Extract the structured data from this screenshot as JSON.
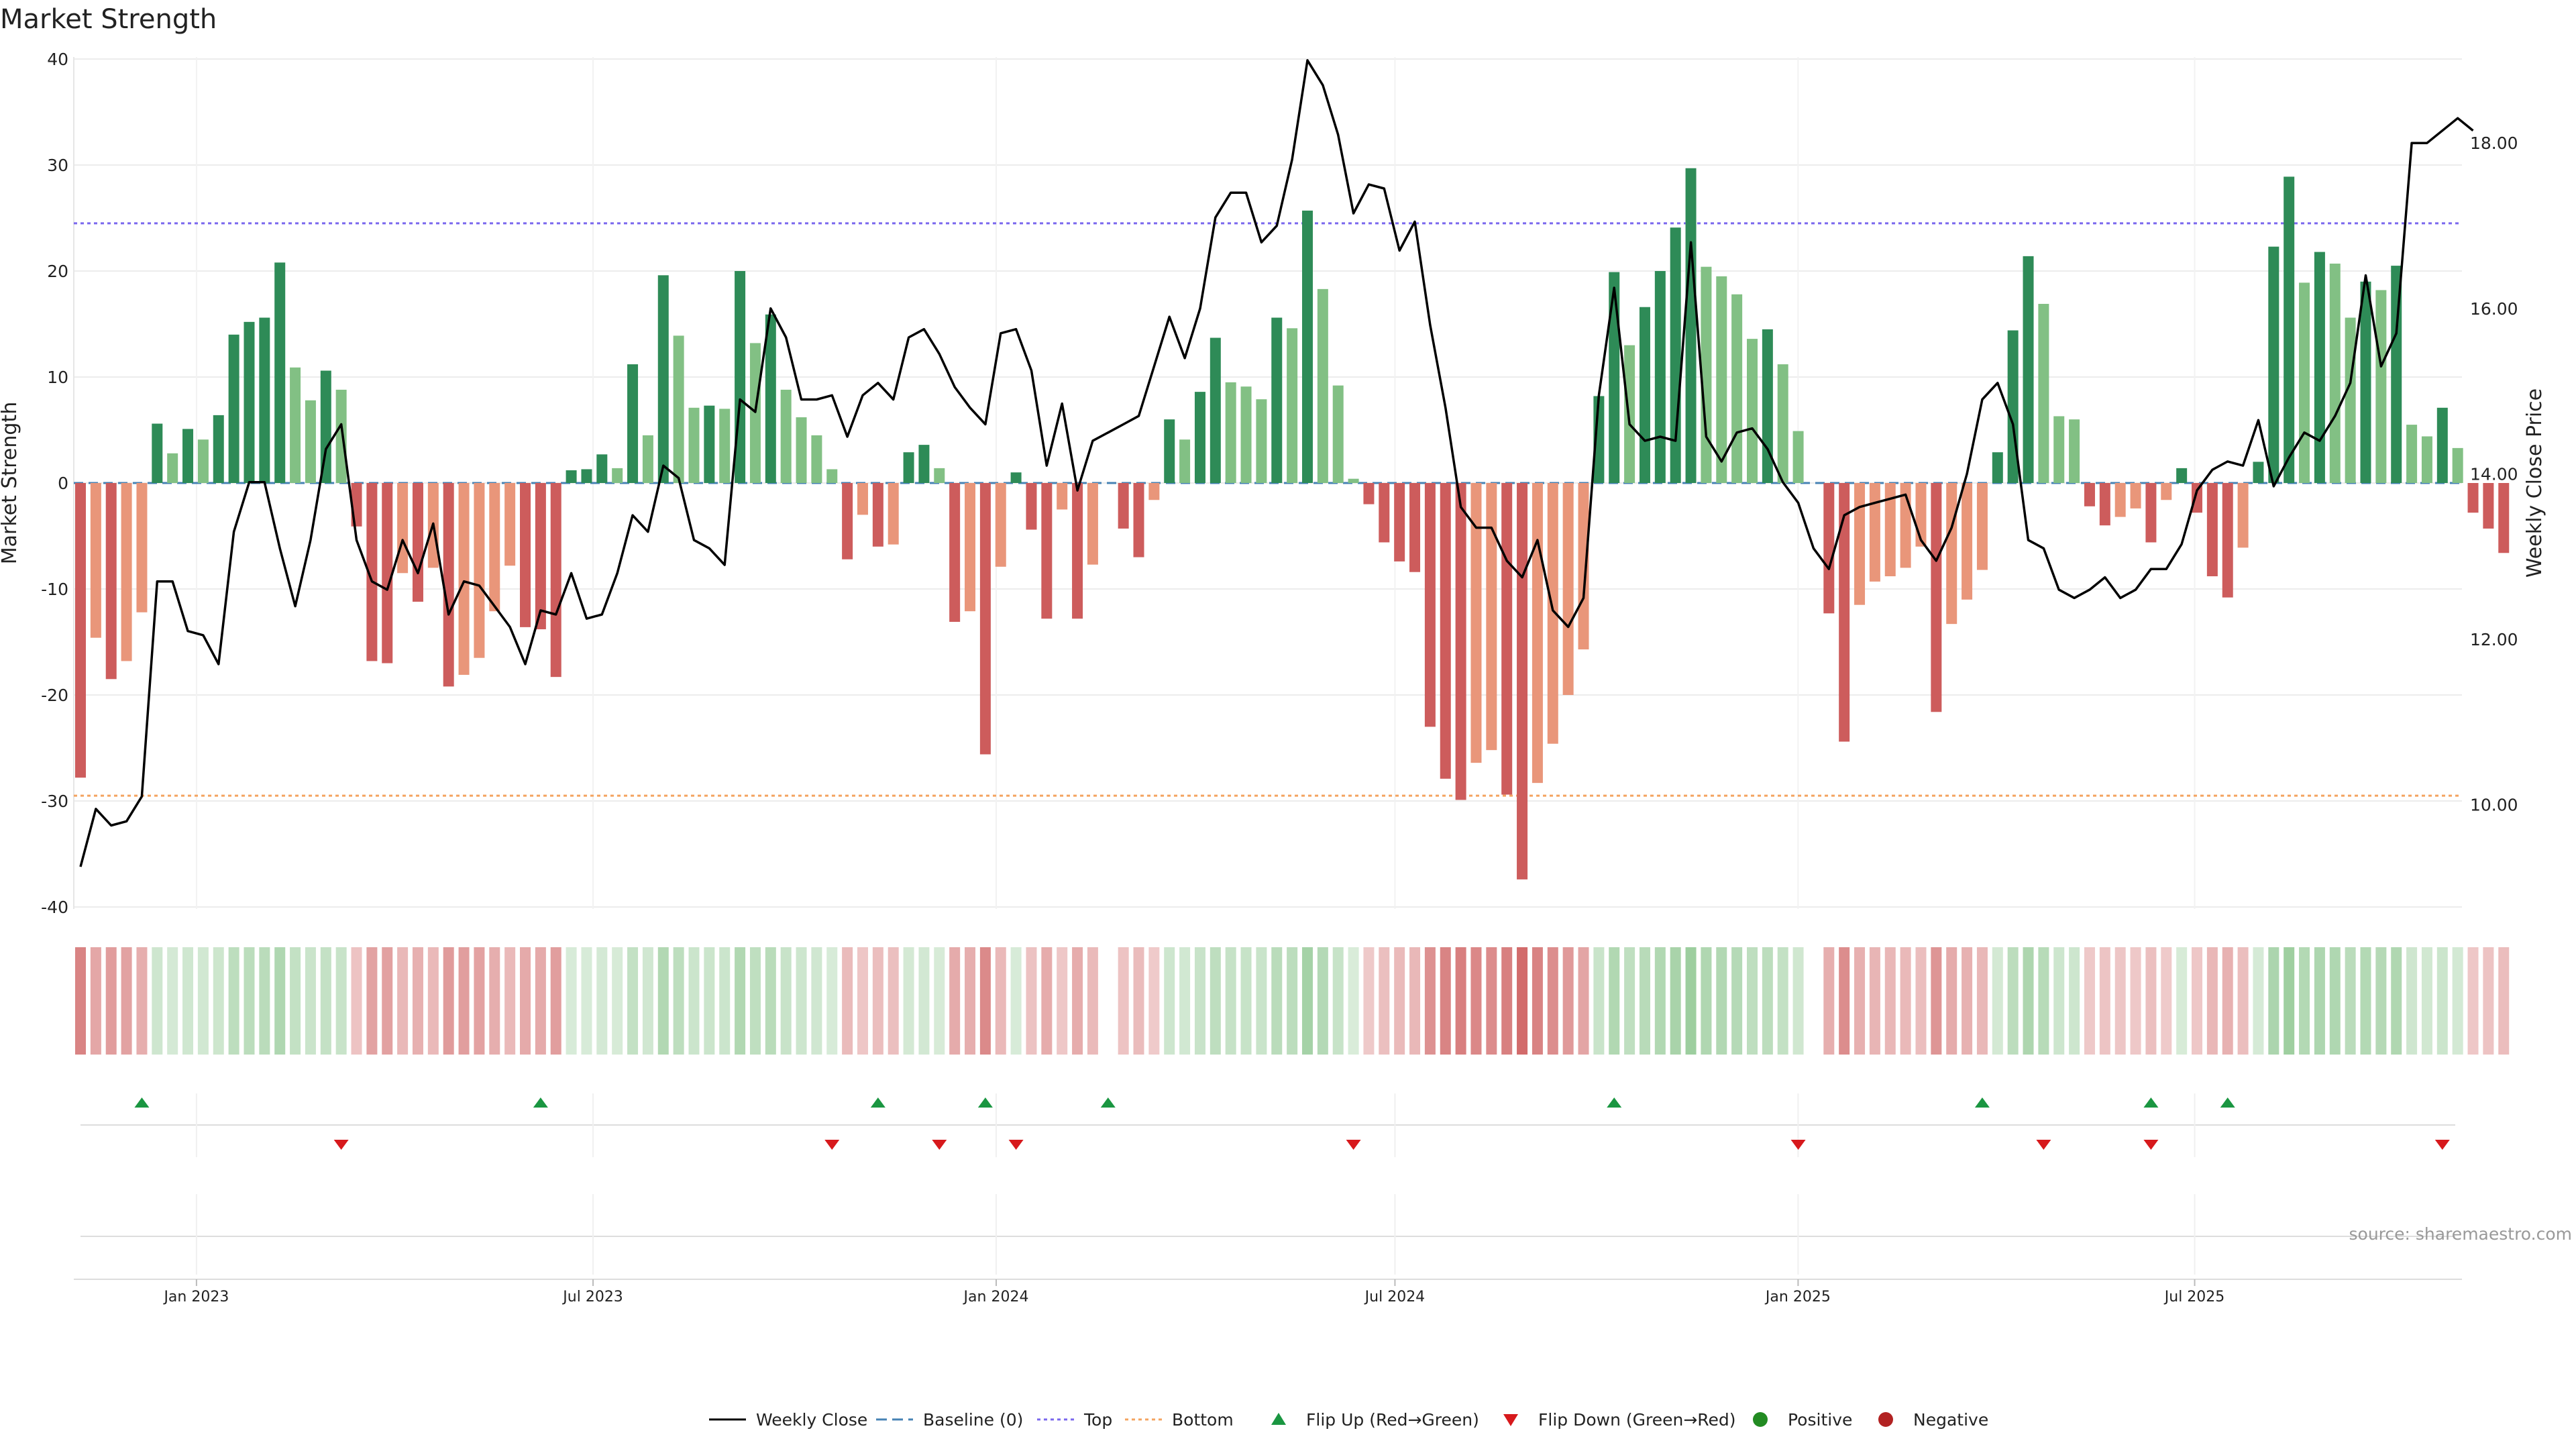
{
  "colors": {
    "strong_green": "#2e8b57",
    "light_green": "#82c084",
    "strong_red": "#cd5c5c",
    "light_red": "#e9967a",
    "top_line": "#7b68ee",
    "bottom_line": "#f4a460",
    "baseline": "#4682b4",
    "close_line": "#000000",
    "flip_up": "#1a9641",
    "flip_down": "#d7191c",
    "positive": "#228b22",
    "negative": "#b22222"
  },
  "chart_data": {
    "type": "bar",
    "title": "Market Strength",
    "ylabel": "Market Strength",
    "y2label": "Weekly Close Price",
    "ylim": [
      -42,
      40
    ],
    "yticks": [
      40,
      30,
      20,
      10,
      0,
      -10,
      -20,
      -30,
      -40
    ],
    "y2lim": [
      8.74,
      19.04
    ],
    "y2ticks": [
      "18.00",
      "16.00",
      "14.00",
      "12.00",
      "10.00"
    ],
    "top_threshold": 24.5,
    "bottom_threshold": -29.5,
    "x_start": "2022-11-06",
    "x_end": "2025-10-31",
    "xticks": [
      {
        "date": "2023-01-01",
        "label": "Jan 2023"
      },
      {
        "date": "2023-07-01",
        "label": "Jul 2023"
      },
      {
        "date": "2024-01-01",
        "label": "Jan 2024"
      },
      {
        "date": "2024-07-01",
        "label": "Jul 2024"
      },
      {
        "date": "2025-01-01",
        "label": "Jan 2025"
      },
      {
        "date": "2025-07-01",
        "label": "Jul 2025"
      }
    ],
    "first_week": "2022-11-06",
    "series": [
      {
        "name": "Market Strength",
        "values": [
          -27.8,
          -14.6,
          -18.5,
          -16.8,
          -12.2,
          5.6,
          2.8,
          5.1,
          4.1,
          6.4,
          14,
          15.2,
          15.6,
          20.8,
          10.9,
          7.8,
          10.6,
          8.8,
          -4.1,
          -16.8,
          -17,
          -8.5,
          -11.2,
          -8,
          -19.2,
          -18.1,
          -16.5,
          -12.1,
          -7.8,
          -13.6,
          -13.8,
          -18.3,
          1.2,
          1.3,
          2.7,
          1.4,
          11.2,
          4.5,
          19.6,
          13.9,
          7.1,
          7.3,
          7,
          20,
          13.2,
          15.9,
          8.8,
          6.2,
          4.5,
          1.3,
          -7.2,
          -3,
          -6,
          -5.8,
          2.9,
          3.6,
          1.4,
          -13.1,
          -12.1,
          -25.6,
          -7.9,
          1,
          -4.4,
          -12.8,
          -2.5,
          -12.8,
          -7.7,
          null,
          -4.3,
          -7,
          -1.6,
          6,
          4.1,
          8.6,
          13.7,
          9.5,
          9.1,
          7.9,
          15.6,
          14.6,
          25.7,
          18.3,
          9.2,
          0.4,
          -2,
          -5.6,
          -7.4,
          -8.4,
          -23,
          -27.9,
          -29.9,
          -26.4,
          -25.2,
          -29.4,
          -37.4,
          -28.3,
          -24.6,
          -20,
          -15.7,
          8.2,
          19.9,
          13,
          16.6,
          20,
          24.1,
          29.7,
          20.4,
          19.5,
          17.8,
          13.6,
          14.5,
          11.2,
          4.9,
          null,
          -12.3,
          -24.4,
          -11.5,
          -9.3,
          -8.8,
          -8,
          -6,
          -21.6,
          -13.3,
          -11,
          -8.2,
          2.9,
          14.4,
          21.4,
          16.9,
          6.3,
          6,
          -2.2,
          -4,
          -3.2,
          -2.4,
          -5.6,
          -1.6,
          1.4,
          -2.8,
          -8.8,
          -10.8,
          -6.1,
          2,
          22.3,
          28.9,
          18.9,
          21.8,
          20.7,
          15.6,
          19,
          18.2,
          20.5,
          5.5,
          4.4,
          7.1,
          3.3,
          -2.8,
          -4.3,
          -6.6
        ]
      },
      {
        "name": "Weekly Close",
        "values": [
          9.25,
          9.95,
          9.75,
          9.8,
          10.1,
          12.7,
          12.7,
          12.1,
          12.05,
          11.7,
          13.3,
          13.9,
          13.9,
          13.1,
          12.4,
          13.2,
          14.3,
          14.6,
          13.2,
          12.7,
          12.6,
          13.2,
          12.8,
          13.4,
          12.3,
          12.7,
          12.65,
          12.4,
          12.15,
          11.7,
          12.35,
          12.3,
          12.8,
          12.25,
          12.3,
          12.8,
          13.5,
          13.3,
          14.1,
          13.95,
          13.2,
          13.1,
          12.9,
          14.9,
          14.75,
          16.0,
          15.65,
          14.9,
          14.9,
          14.95,
          14.45,
          14.95,
          15.1,
          14.9,
          15.65,
          15.75,
          15.45,
          15.05,
          14.8,
          14.6,
          15.7,
          15.75,
          15.25,
          14.1,
          14.85,
          13.8,
          14.4,
          14.5,
          14.6,
          14.7,
          15.3,
          15.9,
          15.4,
          16.0,
          17.1,
          17.4,
          17.4,
          16.8,
          17.0,
          17.8,
          19.0,
          18.7,
          18.1,
          17.15,
          17.5,
          17.45,
          16.7,
          17.05,
          15.8,
          14.8,
          13.6,
          13.35,
          13.35,
          12.95,
          12.75,
          13.2,
          12.35,
          12.15,
          12.5,
          14.95,
          16.25,
          14.6,
          14.4,
          14.45,
          14.4,
          16.8,
          14.45,
          14.15,
          14.5,
          14.55,
          14.3,
          13.9,
          13.65,
          13.1,
          12.85,
          13.5,
          13.6,
          13.65,
          13.7,
          13.75,
          13.2,
          12.95,
          13.35,
          14.0,
          14.9,
          15.1,
          14.6,
          13.2,
          13.1,
          12.6,
          12.5,
          12.6,
          12.75,
          12.5,
          12.6,
          12.85,
          12.85,
          13.15,
          13.8,
          14.05,
          14.15,
          14.1,
          14.65,
          13.85,
          14.2,
          14.5,
          14.4,
          14.7,
          15.1,
          16.4,
          15.3,
          15.7,
          18.0,
          18.0,
          18.15,
          18.3,
          18.15
        ]
      }
    ],
    "flip_up_dates": [
      "2022-12-04",
      "2023-06-04",
      "2023-11-05",
      "2023-12-24",
      "2024-02-18",
      "2024-10-06",
      "2025-03-23",
      "2025-06-08",
      "2025-07-13"
    ],
    "flip_down_dates": [
      "2023-03-05",
      "2023-10-15",
      "2023-12-03",
      "2024-01-07",
      "2024-06-09",
      "2024-12-29",
      "2025-04-20",
      "2025-06-08",
      "2025-10-19"
    ],
    "legend": [
      {
        "label": "Weekly Close",
        "kind": "line-solid"
      },
      {
        "label": "Baseline (0)",
        "kind": "line-dashed"
      },
      {
        "label": "Top",
        "kind": "line-dotted-top"
      },
      {
        "label": "Bottom",
        "kind": "line-dotted-bottom"
      },
      {
        "label": "Flip Up (Red→Green)",
        "kind": "tri-up"
      },
      {
        "label": "Flip Down (Green→Red)",
        "kind": "tri-down"
      },
      {
        "label": "Positive",
        "kind": "dot-pos"
      },
      {
        "label": "Negative",
        "kind": "dot-neg"
      }
    ],
    "source": "source: sharemaestro.com"
  }
}
